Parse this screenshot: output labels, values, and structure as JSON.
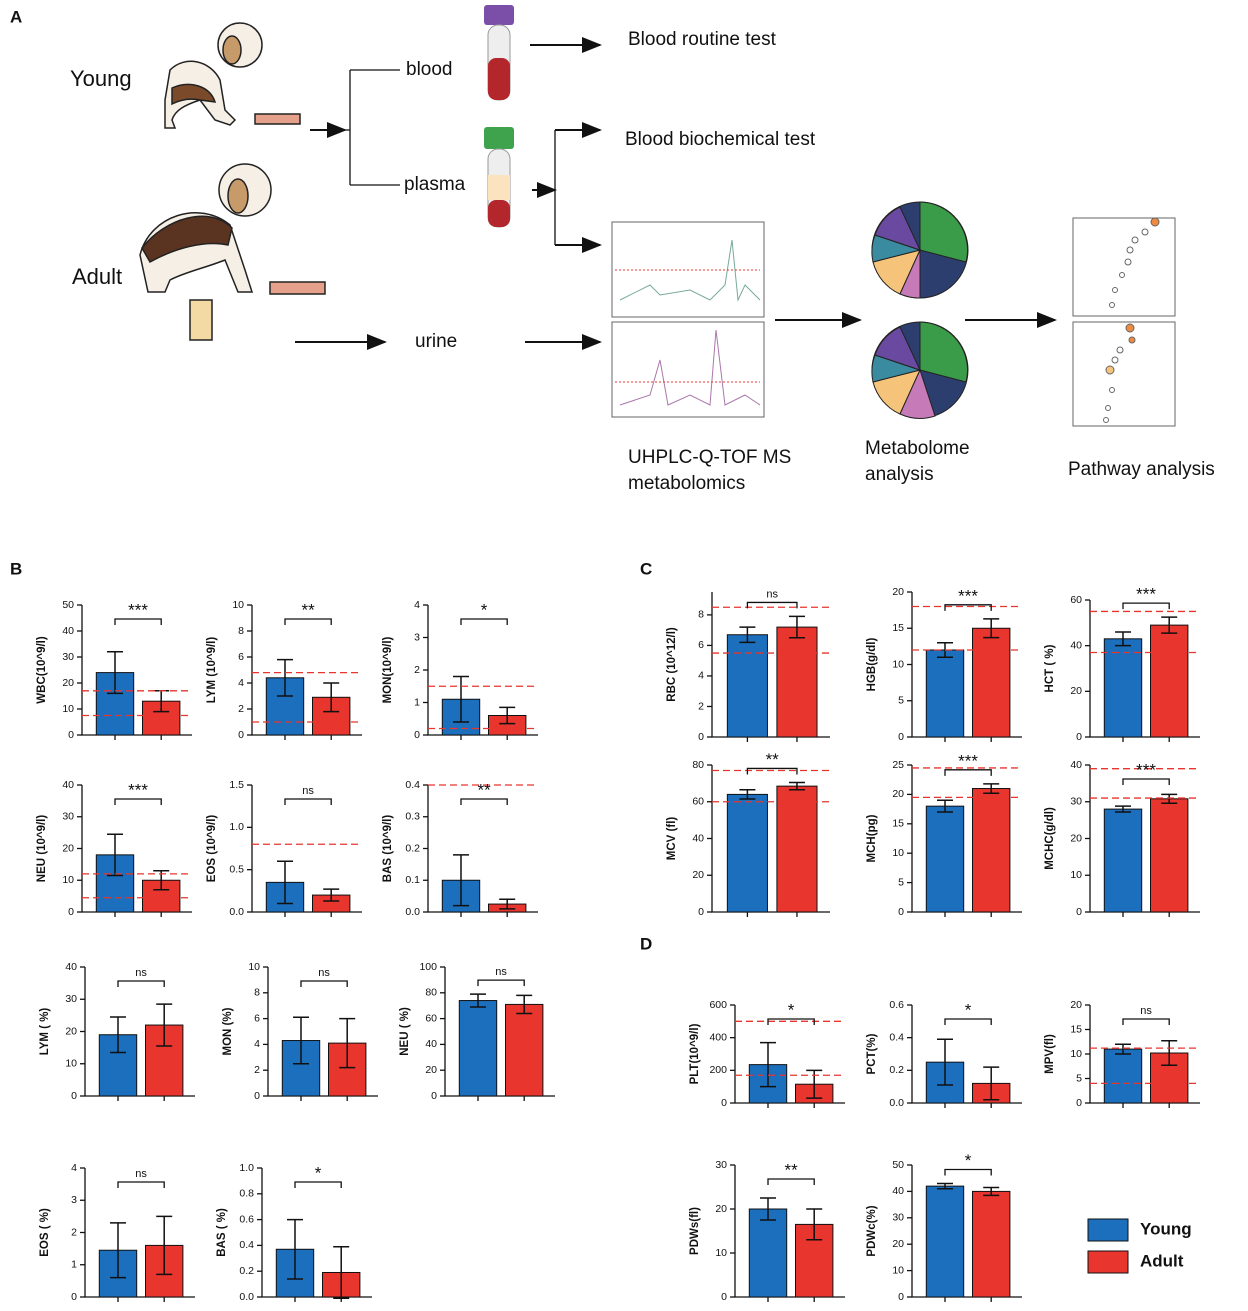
{
  "panels": [
    "A",
    "B",
    "C",
    "D"
  ],
  "diagram": {
    "young": "Young",
    "adult": "Adult",
    "blood": "blood",
    "plasma": "plasma",
    "urine": "urine",
    "routine": "Blood routine test",
    "biochem": "Blood biochemical test",
    "ms_1": "UHPLC-Q-TOF MS",
    "ms_2": "metabolomics",
    "meta_1": "Metabolome",
    "meta_2": "analysis",
    "pathway": "Pathway  analysis"
  },
  "legend": [
    {
      "name": "Young",
      "color": "#1b6fbd"
    },
    {
      "name": "Adult",
      "color": "#e8352e"
    }
  ],
  "chart_data": [
    {
      "type": "bar",
      "ylabel": "WBC(10^9/l)",
      "values": [
        24,
        13
      ],
      "errors": [
        8,
        4
      ],
      "significance": "***",
      "ref_lines": [
        17,
        7.5
      ],
      "ylim": [
        0,
        50
      ],
      "yticks": [
        0,
        10,
        20,
        30,
        40,
        50
      ]
    },
    {
      "type": "bar",
      "ylabel": "LYM (10^9/l)",
      "values": [
        4.4,
        2.9
      ],
      "errors": [
        1.4,
        1.1
      ],
      "significance": "**",
      "ref_lines": [
        4.8,
        1.0
      ],
      "ylim": [
        0,
        10
      ],
      "yticks": [
        0,
        2,
        4,
        6,
        8,
        10
      ]
    },
    {
      "type": "bar",
      "ylabel": "MON(10^9/l)",
      "values": [
        1.1,
        0.6
      ],
      "errors": [
        0.7,
        0.25
      ],
      "significance": "*",
      "ref_lines": [
        1.5,
        0.2
      ],
      "ylim": [
        0,
        4
      ],
      "yticks": [
        0,
        1,
        2,
        3,
        4
      ]
    },
    {
      "type": "bar",
      "ylabel": "NEU (10^9/l)",
      "values": [
        18,
        10
      ],
      "errors": [
        6.5,
        3
      ],
      "significance": "***",
      "ref_lines": [
        12,
        4.5
      ],
      "ylim": [
        0,
        40
      ],
      "yticks": [
        0,
        10,
        20,
        30,
        40
      ]
    },
    {
      "type": "bar",
      "ylabel": "EOS (10^9/l)",
      "values": [
        0.35,
        0.2
      ],
      "errors": [
        0.25,
        0.07
      ],
      "significance": "ns",
      "ref_lines": [
        0.8
      ],
      "ylim": [
        0,
        1.5
      ],
      "yticks": [
        {
          "value": 0,
          "label": "0.0"
        },
        0.5,
        {
          "value": 1,
          "label": "1.0"
        },
        1.5
      ]
    },
    {
      "type": "bar",
      "ylabel": "BAS (10^9/l)",
      "values": [
        0.1,
        0.025
      ],
      "errors": [
        0.08,
        0.015
      ],
      "significance": "**",
      "ref_lines": [
        0.4
      ],
      "ylim": [
        0,
        0.4
      ],
      "yticks": [
        {
          "value": 0,
          "label": "0.0"
        },
        0.1,
        0.2,
        0.3,
        0.4
      ]
    },
    {
      "type": "bar",
      "ylabel": "LYM ( %)",
      "values": [
        19,
        22
      ],
      "errors": [
        5.5,
        6.5
      ],
      "significance": "ns",
      "ylim": [
        0,
        40
      ],
      "yticks": [
        0,
        10,
        20,
        30,
        40
      ]
    },
    {
      "type": "bar",
      "ylabel": "MON (%)",
      "values": [
        4.3,
        4.1
      ],
      "errors": [
        1.8,
        1.9
      ],
      "significance": "ns",
      "ylim": [
        0,
        10
      ],
      "yticks": [
        0,
        2,
        4,
        6,
        8,
        10
      ]
    },
    {
      "type": "bar",
      "ylabel": "NEU ( %)",
      "values": [
        74,
        71
      ],
      "errors": [
        5,
        7
      ],
      "significance": "ns",
      "ylim": [
        0,
        100
      ],
      "yticks": [
        0,
        20,
        40,
        60,
        80,
        100
      ]
    },
    {
      "type": "bar",
      "ylabel": "EOS ( %)",
      "values": [
        1.45,
        1.6
      ],
      "errors": [
        0.85,
        0.9
      ],
      "significance": "ns",
      "ylim": [
        0,
        4
      ],
      "yticks": [
        0,
        1,
        2,
        3,
        4
      ]
    },
    {
      "type": "bar",
      "ylabel": "BAS ( %)",
      "values": [
        0.37,
        0.19
      ],
      "errors": [
        0.23,
        0.2
      ],
      "significance": "*",
      "ylim": [
        0,
        1
      ],
      "yticks": [
        {
          "value": 0,
          "label": "0.0"
        },
        0.2,
        0.4,
        0.6,
        0.8,
        {
          "value": 1,
          "label": "1.0"
        }
      ]
    },
    {
      "type": "bar",
      "ylabel": "RBC (10^12/l)",
      "values": [
        6.7,
        7.2
      ],
      "errors": [
        0.5,
        0.7
      ],
      "significance": "ns",
      "ref_lines": [
        8.5,
        5.5
      ],
      "ylim": [
        0,
        9.5
      ],
      "yticks": [
        0,
        2,
        4,
        6,
        8
      ]
    },
    {
      "type": "bar",
      "ylabel": "HGB(g/dl)",
      "values": [
        12,
        15
      ],
      "errors": [
        1,
        1.3
      ],
      "significance": "***",
      "ref_lines": [
        18,
        12
      ],
      "ylim": [
        0,
        20
      ],
      "yticks": [
        0,
        5,
        10,
        15,
        20
      ]
    },
    {
      "type": "bar",
      "ylabel": "HCT ( %)",
      "values": [
        43,
        49
      ],
      "errors": [
        3,
        3.5
      ],
      "significance": "***",
      "ref_lines": [
        55,
        37
      ],
      "ylim": [
        0,
        60
      ],
      "yticks": [
        0,
        20,
        40,
        60
      ]
    },
    {
      "type": "bar",
      "ylabel": "MCV (fl)",
      "values": [
        64,
        68.5
      ],
      "errors": [
        2.5,
        2
      ],
      "significance": "**",
      "ref_lines": [
        77,
        60
      ],
      "ylim": [
        0,
        80
      ],
      "yticks": [
        0,
        20,
        40,
        60,
        80
      ]
    },
    {
      "type": "bar",
      "ylabel": "MCH(pg)",
      "values": [
        18,
        21
      ],
      "errors": [
        1,
        0.8
      ],
      "significance": "***",
      "ref_lines": [
        24.5,
        19.5
      ],
      "ylim": [
        0,
        25
      ],
      "yticks": [
        0,
        5,
        10,
        15,
        20,
        25
      ]
    },
    {
      "type": "bar",
      "ylabel": "MCHC(g/dl)",
      "values": [
        28,
        30.8
      ],
      "errors": [
        0.8,
        1.2
      ],
      "significance": "***",
      "ref_lines": [
        39,
        31
      ],
      "ylim": [
        0,
        40
      ],
      "yticks": [
        0,
        10,
        20,
        30,
        40
      ]
    },
    {
      "type": "bar",
      "ylabel": "PLT(10^9/l)",
      "values": [
        235,
        115
      ],
      "errors": [
        135,
        85
      ],
      "significance": "*",
      "ref_lines": [
        500,
        170
      ],
      "ylim": [
        0,
        600
      ],
      "yticks": [
        0,
        200,
        400,
        600
      ]
    },
    {
      "type": "bar",
      "ylabel": "PCT(%)",
      "values": [
        0.25,
        0.12
      ],
      "errors": [
        0.14,
        0.1
      ],
      "significance": "*",
      "ylim": [
        0,
        0.6
      ],
      "yticks": [
        {
          "value": 0,
          "label": "0.0"
        },
        0.2,
        0.4,
        0.6
      ]
    },
    {
      "type": "bar",
      "ylabel": "MPV(fl)",
      "values": [
        11,
        10.2
      ],
      "errors": [
        1,
        2.5
      ],
      "significance": "ns",
      "ref_lines": [
        11.2,
        4
      ],
      "ylim": [
        0,
        20
      ],
      "yticks": [
        0,
        5,
        10,
        15,
        20
      ]
    },
    {
      "type": "bar",
      "ylabel": "PDWs(fl)",
      "values": [
        20,
        16.5
      ],
      "errors": [
        2.5,
        3.5
      ],
      "significance": "**",
      "ylim": [
        0,
        30
      ],
      "yticks": [
        0,
        10,
        20,
        30
      ]
    },
    {
      "type": "bar",
      "ylabel": "PDWc(%)",
      "values": [
        42,
        40
      ],
      "errors": [
        1,
        1.5
      ],
      "significance": "*",
      "ylim": [
        0,
        50
      ],
      "yticks": [
        0,
        10,
        20,
        30,
        40,
        50
      ]
    }
  ]
}
